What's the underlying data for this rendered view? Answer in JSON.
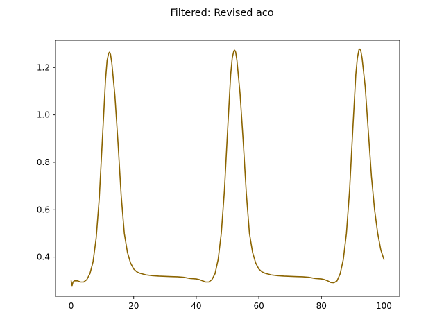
{
  "chart_data": {
    "type": "line",
    "title": "Filtered: Revised aco",
    "xlabel": "",
    "ylabel": "",
    "xlim": [
      -5,
      105
    ],
    "ylim": [
      0.235,
      1.315
    ],
    "x_ticks": [
      0,
      20,
      40,
      60,
      80,
      100
    ],
    "y_ticks": [
      0.4,
      0.6,
      0.8,
      1.0,
      1.2
    ],
    "x_tick_labels": [
      "0",
      "20",
      "40",
      "60",
      "80",
      "100"
    ],
    "y_tick_labels": [
      "0.4",
      "0.6",
      "0.8",
      "1.0",
      "1.2"
    ],
    "grid": false,
    "line_color": "#8b6400",
    "series": [
      {
        "x": [
          0,
          0.3,
          0.6,
          1,
          2,
          3,
          4,
          5,
          6,
          7,
          8,
          9,
          10,
          11,
          11.5,
          12,
          12.3,
          12.6,
          13,
          14,
          15,
          16,
          17,
          18,
          19,
          20,
          21,
          22,
          24,
          26,
          28,
          30,
          32,
          34,
          36,
          38,
          40,
          41,
          42,
          43,
          44,
          45,
          46,
          47,
          48,
          49,
          50,
          51,
          51.5,
          52,
          52.3,
          52.6,
          53,
          54,
          55,
          56,
          57,
          58,
          59,
          60,
          61,
          62,
          64,
          66,
          68,
          70,
          72,
          74,
          76,
          78,
          80,
          81,
          82,
          83,
          84,
          85,
          86,
          87,
          88,
          89,
          90,
          91,
          91.5,
          92,
          92.3,
          92.6,
          93,
          94,
          95,
          96,
          97,
          98,
          99,
          100
        ],
        "y": [
          0.3,
          0.28,
          0.295,
          0.3,
          0.3,
          0.295,
          0.295,
          0.305,
          0.33,
          0.38,
          0.48,
          0.65,
          0.9,
          1.15,
          1.23,
          1.26,
          1.265,
          1.255,
          1.22,
          1.08,
          0.88,
          0.66,
          0.5,
          0.42,
          0.375,
          0.35,
          0.338,
          0.332,
          0.325,
          0.322,
          0.32,
          0.319,
          0.318,
          0.317,
          0.315,
          0.31,
          0.308,
          0.305,
          0.3,
          0.295,
          0.295,
          0.305,
          0.33,
          0.39,
          0.5,
          0.68,
          0.93,
          1.17,
          1.24,
          1.27,
          1.273,
          1.265,
          1.23,
          1.09,
          0.89,
          0.67,
          0.5,
          0.42,
          0.375,
          0.35,
          0.338,
          0.332,
          0.325,
          0.322,
          0.32,
          0.319,
          0.318,
          0.317,
          0.315,
          0.31,
          0.308,
          0.305,
          0.3,
          0.293,
          0.292,
          0.3,
          0.33,
          0.39,
          0.5,
          0.68,
          0.93,
          1.17,
          1.24,
          1.275,
          1.278,
          1.27,
          1.24,
          1.12,
          0.93,
          0.74,
          0.6,
          0.5,
          0.43,
          0.39
        ]
      }
    ]
  }
}
